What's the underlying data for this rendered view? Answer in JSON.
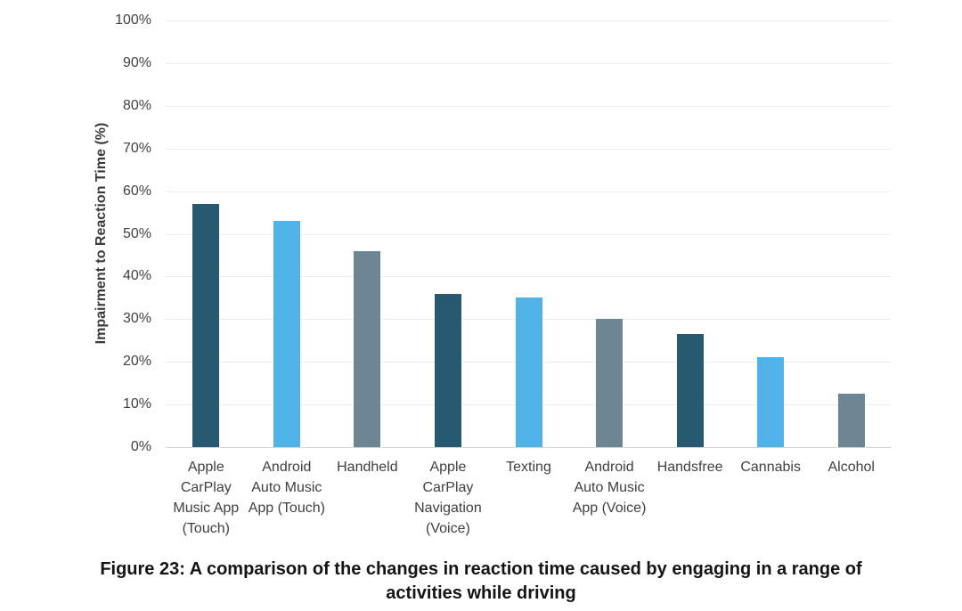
{
  "figure": {
    "caption": "Figure 23: A comparison of the changes in reaction time caused by engaging in a range of\nactivities while driving"
  },
  "chart_data": {
    "type": "bar",
    "title": "",
    "xlabel": "",
    "ylabel": "Impairment to Reaction Time (%)",
    "ylim": [
      0,
      100
    ],
    "yticks": [
      0,
      10,
      20,
      30,
      40,
      50,
      60,
      70,
      80,
      90,
      100
    ],
    "ytick_labels": [
      "0%",
      "10%",
      "20%",
      "30%",
      "40%",
      "50%",
      "60%",
      "70%",
      "80%",
      "90%",
      "100%"
    ],
    "grid": true,
    "legend_position": "none",
    "categories": [
      "Apple CarPlay Music App (Touch)",
      "Android Auto Music App (Touch)",
      "Handheld",
      "Apple CarPlay Navigation (Voice)",
      "Texting",
      "Android Auto Music App (Voice)",
      "Handsfree",
      "Cannabis",
      "Alcohol"
    ],
    "xtick_labels": [
      "Apple\nCarPlay\nMusic App\n(Touch)",
      "Android\nAuto Music\nApp (Touch)",
      "Handheld",
      "Apple\nCarPlay\nNavigation\n(Voice)",
      "Texting",
      "Android\nAuto Music\nApp (Voice)",
      "Handsfree",
      "Cannabis",
      "Alcohol"
    ],
    "values": [
      57,
      53,
      46,
      36,
      35,
      30,
      26.5,
      21,
      12.5
    ],
    "bar_colors": [
      "#27596F",
      "#4FB3E8",
      "#6C8694"
    ]
  }
}
